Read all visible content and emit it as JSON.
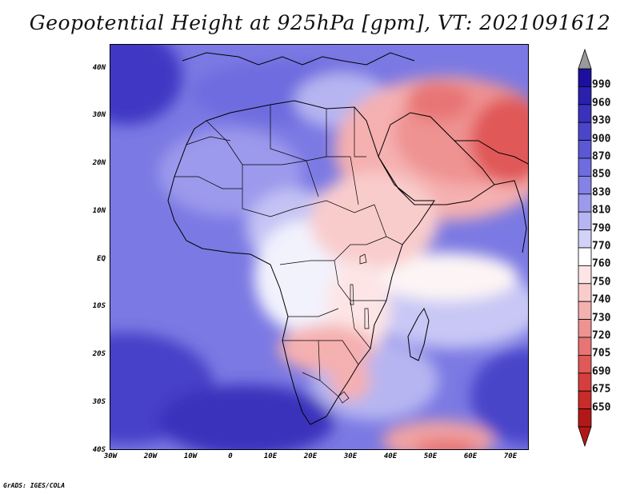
{
  "title": "Geopotential Height at 925hPa [gpm], VT: 2021091612",
  "footer": "GrADS: IGES/COLA",
  "axes": {
    "lat_labels": [
      "40N",
      "30N",
      "20N",
      "10N",
      "EQ",
      "10S",
      "20S",
      "30S",
      "40S"
    ],
    "lon_labels": [
      "30W",
      "20W",
      "10W",
      "0",
      "10E",
      "20E",
      "30E",
      "40E",
      "50E",
      "60E",
      "70E"
    ]
  },
  "colorbar": {
    "labels": [
      "990",
      "960",
      "930",
      "900",
      "870",
      "850",
      "830",
      "810",
      "790",
      "770",
      "760",
      "750",
      "740",
      "730",
      "720",
      "705",
      "690",
      "675",
      "650"
    ],
    "colors": [
      "#1c0f9e",
      "#2a20ad",
      "#3a32bc",
      "#4a45c9",
      "#5c58d4",
      "#6e6cdf",
      "#8482e6",
      "#9c9aec",
      "#b6b5f1",
      "#d2d1f7",
      "#ffffff",
      "#fde5e5",
      "#f9cccc",
      "#f5b0b0",
      "#ef9292",
      "#e87474",
      "#e05858",
      "#d63e3e",
      "#c92a2a",
      "#b31818"
    ],
    "top_arrow_color": "#9a9a9a",
    "bottom_arrow_color": "#b31818"
  },
  "chart_data": {
    "type": "heatmap",
    "title": "Geopotential Height at 925hPa [gpm], VT: 2021091612",
    "xlabel": "",
    "ylabel": "",
    "lon_range": [
      -30,
      75
    ],
    "lat_range": [
      -40,
      45
    ],
    "variable": "Geopotential Height at 925hPa",
    "units": "gpm",
    "contour_levels": [
      650,
      675,
      690,
      705,
      720,
      730,
      740,
      750,
      760,
      770,
      790,
      810,
      830,
      850,
      870,
      900,
      930,
      960,
      990
    ]
  }
}
